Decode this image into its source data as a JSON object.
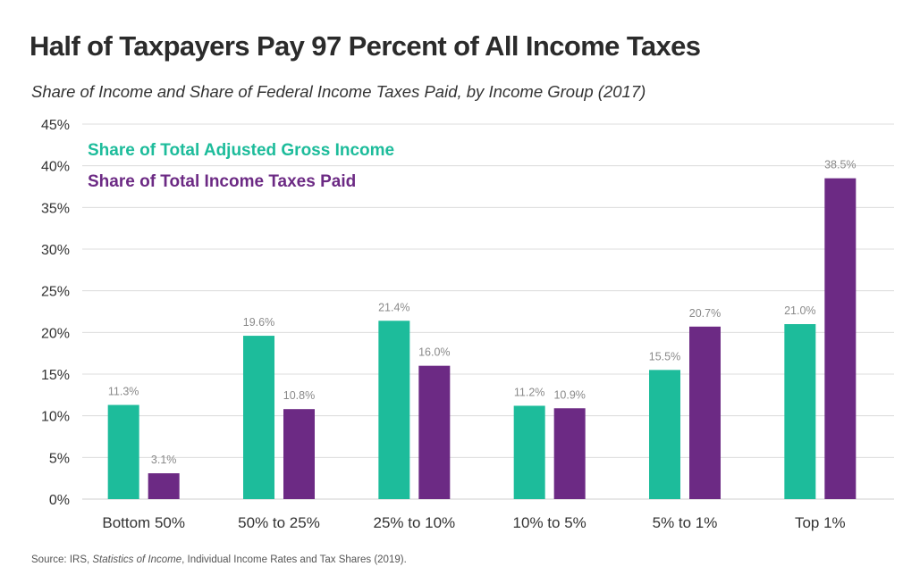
{
  "title": "Half of Taxpayers Pay 97 Percent of All Income Taxes",
  "subtitle": "Share of Income and Share of Federal Income Taxes Paid, by Income Group (2017)",
  "source": {
    "prefix": "Source: IRS, ",
    "italic": "Statistics of Income",
    "suffix": ", Individual Income Rates and Tax Shares (2019)."
  },
  "colors": {
    "income": "#1dbc9b",
    "taxes": "#6c2a84",
    "grid": "#dcdcdc",
    "label": "#8a8a8a",
    "axis_text": "#333333"
  },
  "chart_data": {
    "type": "bar",
    "categories": [
      "Bottom 50%",
      "50% to 25%",
      "25% to 10%",
      "10% to 5%",
      "5% to 1%",
      "Top 1%"
    ],
    "series": [
      {
        "name": "Share of Total Adjusted Gross Income",
        "values": [
          11.3,
          19.6,
          21.4,
          11.2,
          15.5,
          21.0
        ],
        "labels": [
          "11.3%",
          "19.6%",
          "21.4%",
          "11.2%",
          "15.5%",
          "21.0%"
        ]
      },
      {
        "name": "Share of Total Income Taxes Paid",
        "values": [
          3.1,
          10.8,
          16.0,
          10.9,
          20.7,
          38.5
        ],
        "labels": [
          "3.1%",
          "10.8%",
          "16.0%",
          "10.9%",
          "20.7%",
          "38.5%"
        ]
      }
    ],
    "ylim": [
      0,
      45
    ],
    "yticks": [
      "0%",
      "5%",
      "10%",
      "15%",
      "20%",
      "25%",
      "30%",
      "35%",
      "40%",
      "45%"
    ],
    "grid": true,
    "legend": "top-left"
  }
}
